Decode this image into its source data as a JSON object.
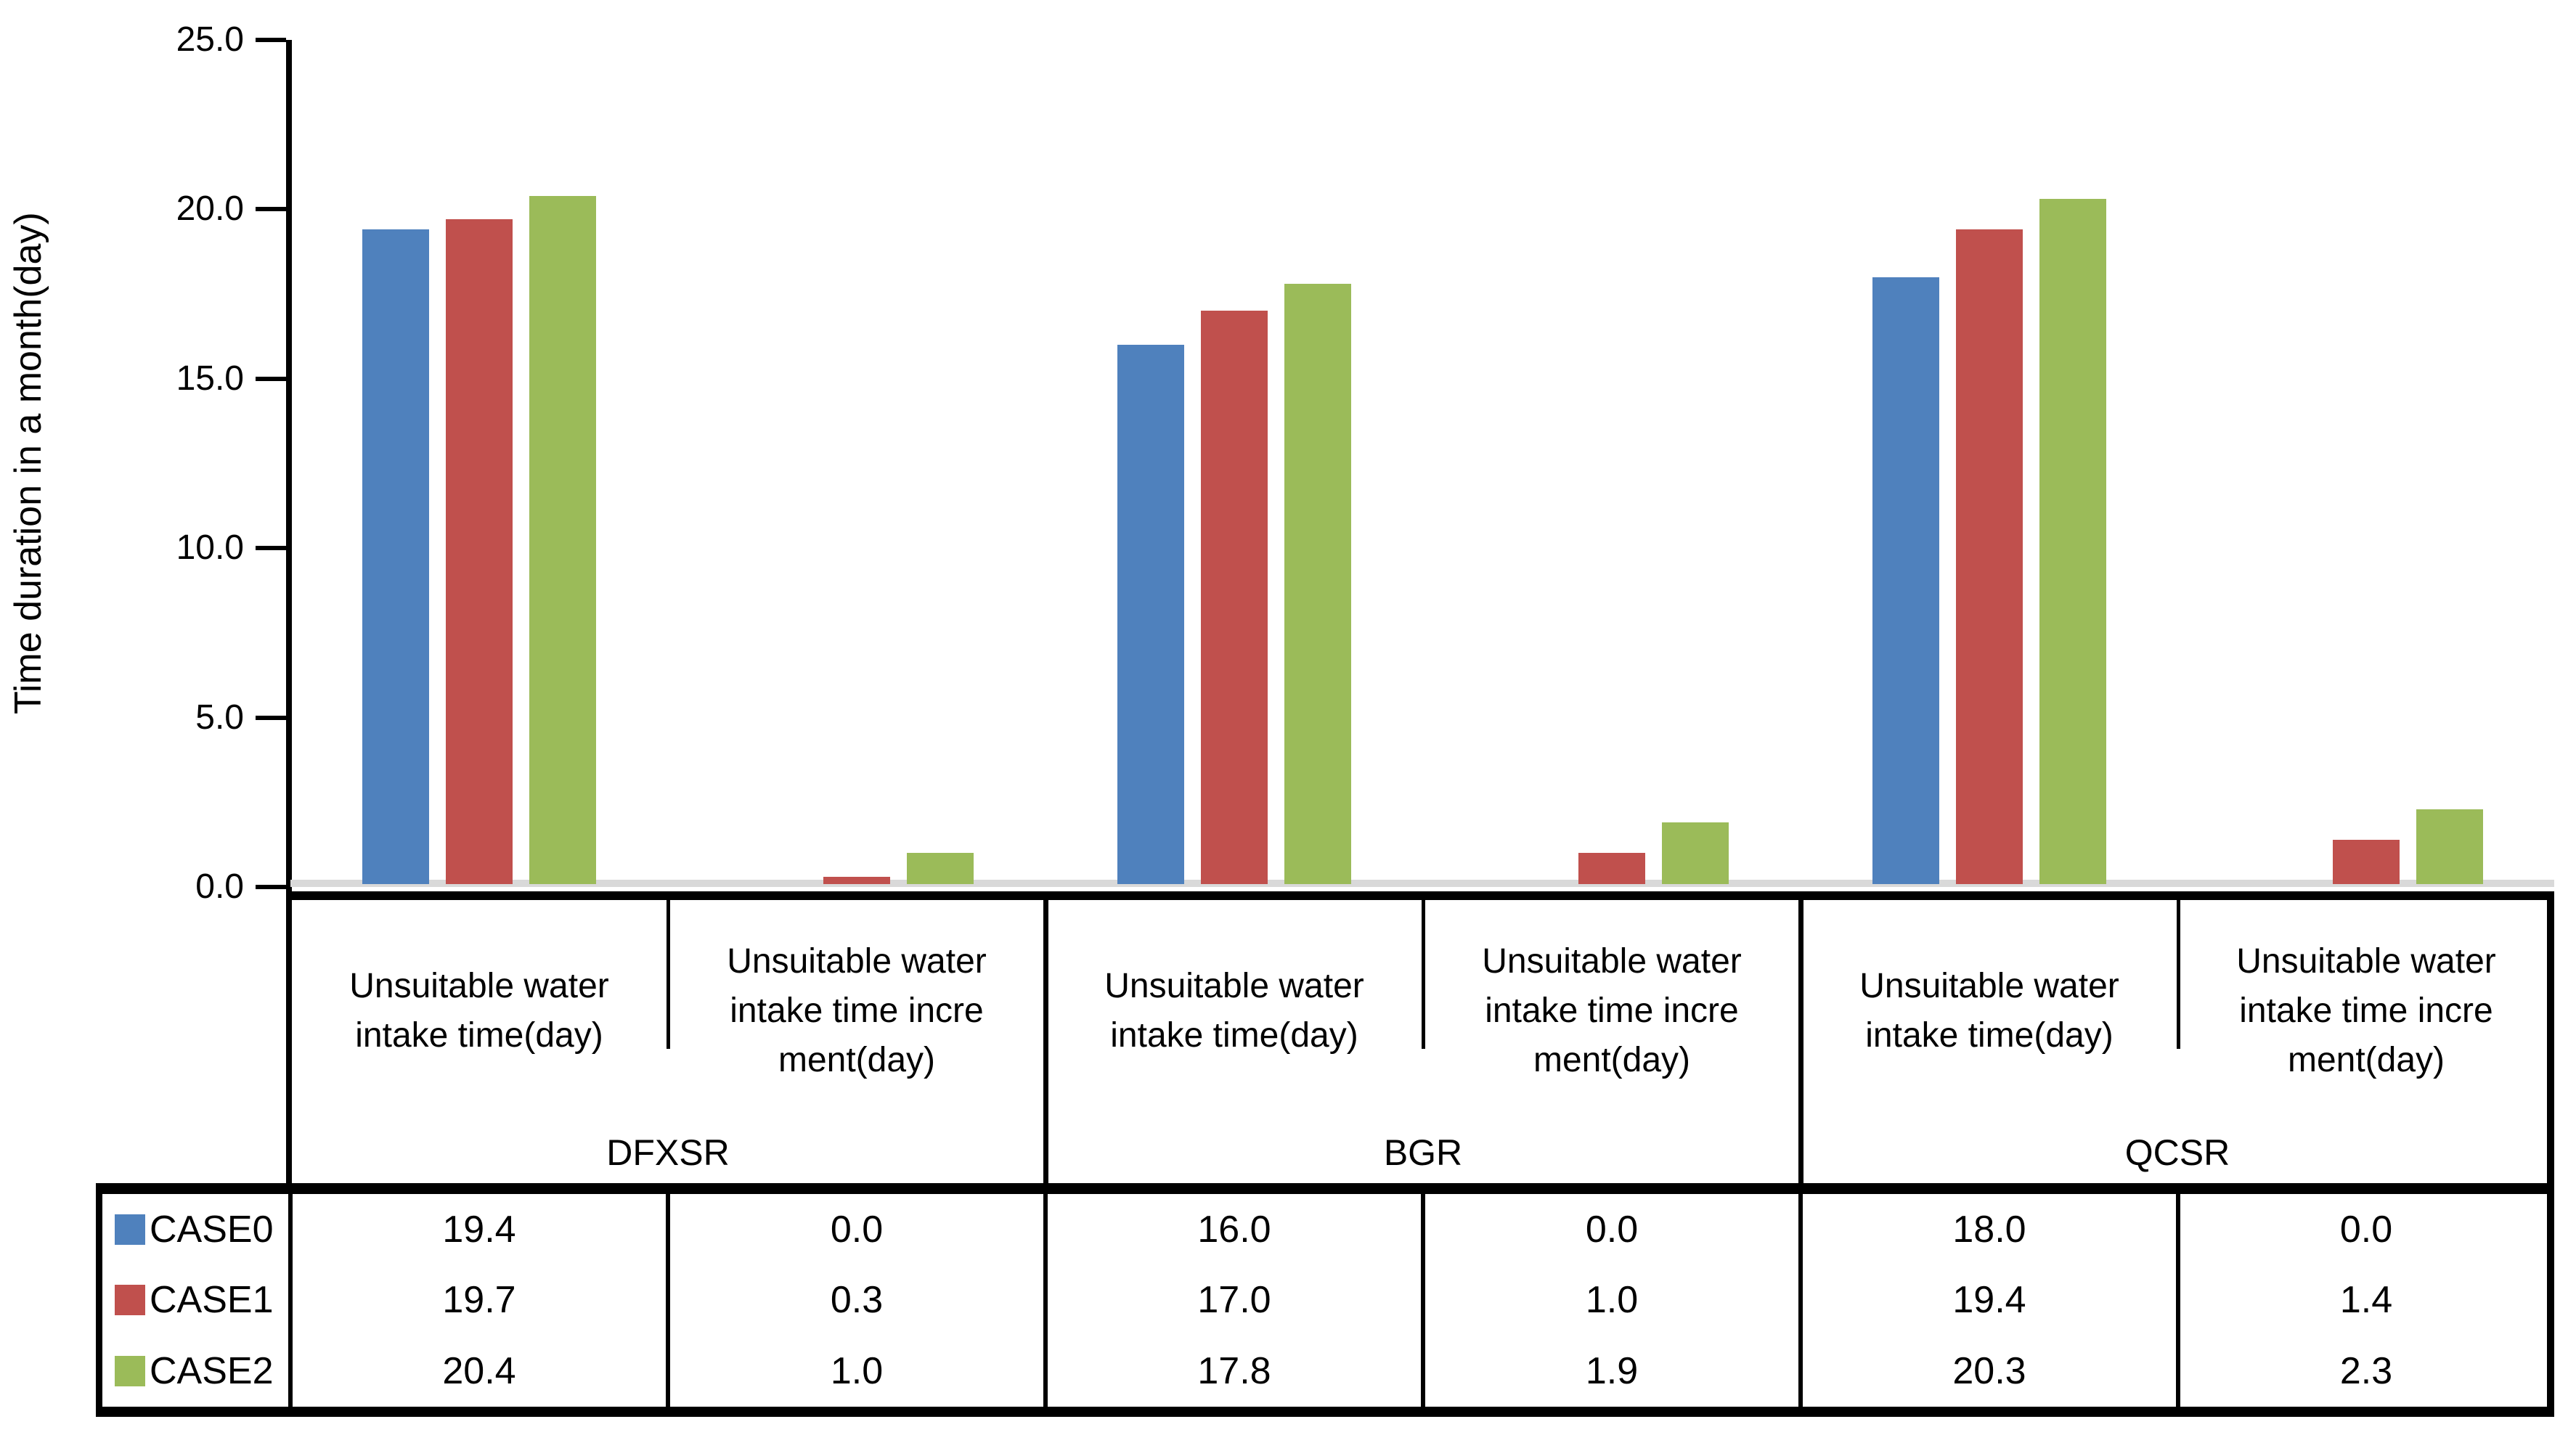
{
  "chart_data": {
    "type": "bar",
    "title": "",
    "ylabel": "Time duration in a month(day)",
    "xlabel": "",
    "ylim": [
      0,
      25
    ],
    "ytick_interval": 5,
    "ytick_labels": [
      "25.0",
      "20.0",
      "15.0",
      "10.0",
      "5.0",
      "0.0"
    ],
    "value_decimals": 1,
    "grid": false,
    "legend_position": "data-table-left-column",
    "axis_colors": {
      "axis_line": "#000000",
      "zero_line": "#D9D9D9",
      "table_border": "#000000"
    },
    "groups": [
      {
        "name": "DFXSR"
      },
      {
        "name": "BGR"
      },
      {
        "name": "QCSR"
      }
    ],
    "columns": [
      {
        "group": "DFXSR",
        "category": "intake",
        "label": "Unsuitable water intake time(day)",
        "display_lines": [
          "Unsuitable water",
          "intake time(day)"
        ]
      },
      {
        "group": "DFXSR",
        "category": "increment",
        "label": "Unsuitable water intake time increment(day)",
        "display_lines": [
          "Unsuitable water",
          "intake time incre",
          "ment(day)"
        ]
      },
      {
        "group": "BGR",
        "category": "intake",
        "label": "Unsuitable water intake time(day)",
        "display_lines": [
          "Unsuitable water",
          "intake time(day)"
        ]
      },
      {
        "group": "BGR",
        "category": "increment",
        "label": "Unsuitable water intake time increment(day)",
        "display_lines": [
          "Unsuitable water",
          "intake time incre",
          "ment(day)"
        ]
      },
      {
        "group": "QCSR",
        "category": "intake",
        "label": "Unsuitable water intake time(day)",
        "display_lines": [
          "Unsuitable water",
          "intake time(day)"
        ]
      },
      {
        "group": "QCSR",
        "category": "increment",
        "label": "Unsuitable water intake time increment(day)",
        "display_lines": [
          "Unsuitable water",
          "intake time incre",
          "ment(day)"
        ]
      }
    ],
    "series": [
      {
        "name": "CASE0",
        "color": "#4F81BD",
        "values": [
          19.4,
          0.0,
          16.0,
          0.0,
          18.0,
          0.0
        ]
      },
      {
        "name": "CASE1",
        "color": "#C0504D",
        "values": [
          19.7,
          0.3,
          17.0,
          1.0,
          19.4,
          1.4
        ]
      },
      {
        "name": "CASE2",
        "color": "#9BBB59",
        "values": [
          20.4,
          1.0,
          17.8,
          1.9,
          20.3,
          2.3
        ]
      }
    ]
  }
}
